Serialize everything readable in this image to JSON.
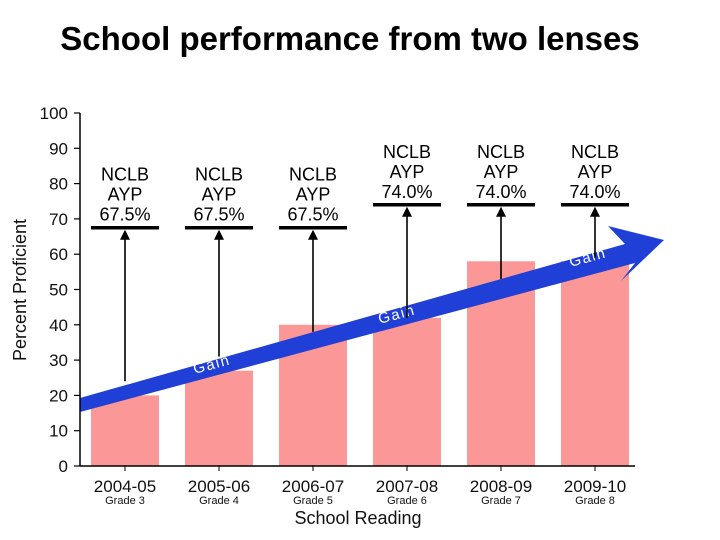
{
  "title": "School performance from two lenses",
  "chart_data": {
    "type": "bar",
    "title": "School performance from two lenses",
    "xlabel": "School Reading",
    "ylabel": "Percent Proficient",
    "ylim": [
      0,
      100
    ],
    "yticks": [
      0,
      10,
      20,
      30,
      40,
      50,
      60,
      70,
      80,
      90,
      100
    ],
    "categories": [
      "2004-05",
      "2005-06",
      "2006-07",
      "2007-08",
      "2008-09",
      "2009-10"
    ],
    "grades": [
      "Grade 3",
      "Grade 4",
      "Grade 5",
      "Grade 6",
      "Grade 7",
      "Grade 8"
    ],
    "values": [
      20,
      27,
      40,
      42,
      58,
      58
    ],
    "targets": [
      {
        "line1": "NCLB",
        "line2": "AYP",
        "value_label": "67.5%",
        "value": 67.5
      },
      {
        "line1": "NCLB",
        "line2": "AYP",
        "value_label": "67.5%",
        "value": 67.5
      },
      {
        "line1": "NCLB",
        "line2": "AYP",
        "value_label": "67.5%",
        "value": 67.5
      },
      {
        "line1": "NCLB",
        "line2": "AYP",
        "value_label": "74.0%",
        "value": 74.0
      },
      {
        "line1": "NCLB",
        "line2": "AYP",
        "value_label": "74.0%",
        "value": 74.0
      },
      {
        "line1": "NCLB",
        "line2": "AYP",
        "value_label": "74.0%",
        "value": 74.0
      }
    ],
    "gain_labels": [
      "Gain",
      "Gain",
      "Gain"
    ],
    "colors": {
      "bar": "#fc9797",
      "arrow": "#1f3fd6",
      "target_line": "#000000"
    }
  }
}
